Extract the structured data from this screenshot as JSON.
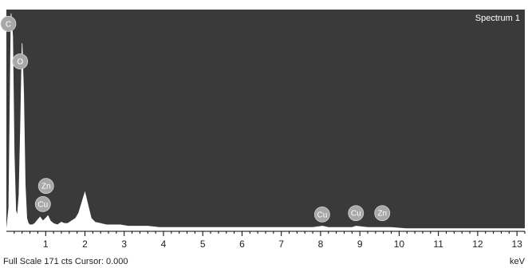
{
  "chart_data": {
    "type": "line",
    "title": "Spectrum 1",
    "xlabel": "keV",
    "xlim": [
      0,
      13.2
    ],
    "ylim": [
      0,
      171
    ],
    "x_ticks": [
      1,
      2,
      3,
      4,
      5,
      6,
      7,
      8,
      9,
      10,
      11,
      12,
      13
    ],
    "footer": "Full Scale 171 cts Cursor: 0.000",
    "colors": {
      "plot_bg": "#3a3a3a",
      "spectrum": "#ffffff",
      "marker_fill": "#a8a8a8"
    },
    "spectrum": {
      "x": [
        0.0,
        0.06,
        0.12,
        0.16,
        0.2,
        0.24,
        0.28,
        0.32,
        0.36,
        0.4,
        0.44,
        0.48,
        0.52,
        0.56,
        0.6,
        0.66,
        0.72,
        0.8,
        0.86,
        0.93,
        1.0,
        1.06,
        1.12,
        1.2,
        1.3,
        1.4,
        1.48,
        1.56,
        1.66,
        1.76,
        1.84,
        1.92,
        2.0,
        2.08,
        2.16,
        2.26,
        2.4,
        2.55,
        2.7,
        2.9,
        3.1,
        3.3,
        3.6,
        3.9,
        4.2,
        4.6,
        5.0,
        5.5,
        6.0,
        6.5,
        7.0,
        7.5,
        7.8,
        8.05,
        8.2,
        8.4,
        8.63,
        8.8,
        8.9,
        9.2,
        9.4,
        9.57,
        9.8,
        10.2,
        10.8,
        11.5,
        12.2,
        13.2
      ],
      "y": [
        0,
        18,
        168,
        150,
        60,
        16,
        12,
        28,
        80,
        145,
        105,
        36,
        10,
        6,
        5,
        5,
        6,
        9,
        11,
        8,
        10,
        12,
        8,
        6,
        5,
        7,
        6,
        6,
        8,
        10,
        14,
        22,
        30,
        20,
        10,
        7,
        6,
        5,
        5,
        5,
        4,
        4,
        4,
        3,
        3,
        3,
        3,
        3,
        3,
        3,
        3,
        3,
        3,
        4,
        3,
        3,
        3,
        3,
        4,
        3,
        3,
        3,
        3,
        2,
        2,
        2,
        2,
        2
      ]
    },
    "peaks": [
      {
        "label": "C",
        "x": 0.05,
        "y": 160
      },
      {
        "label": "O",
        "x": 0.35,
        "y": 131
      },
      {
        "label": "Zn",
        "x": 1.01,
        "y": 35
      },
      {
        "label": "Cu",
        "x": 0.93,
        "y": 21
      },
      {
        "label": "Cu",
        "x": 8.04,
        "y": 13
      },
      {
        "label": "Cu",
        "x": 8.9,
        "y": 14
      },
      {
        "label": "Zn",
        "x": 9.57,
        "y": 14
      }
    ]
  }
}
